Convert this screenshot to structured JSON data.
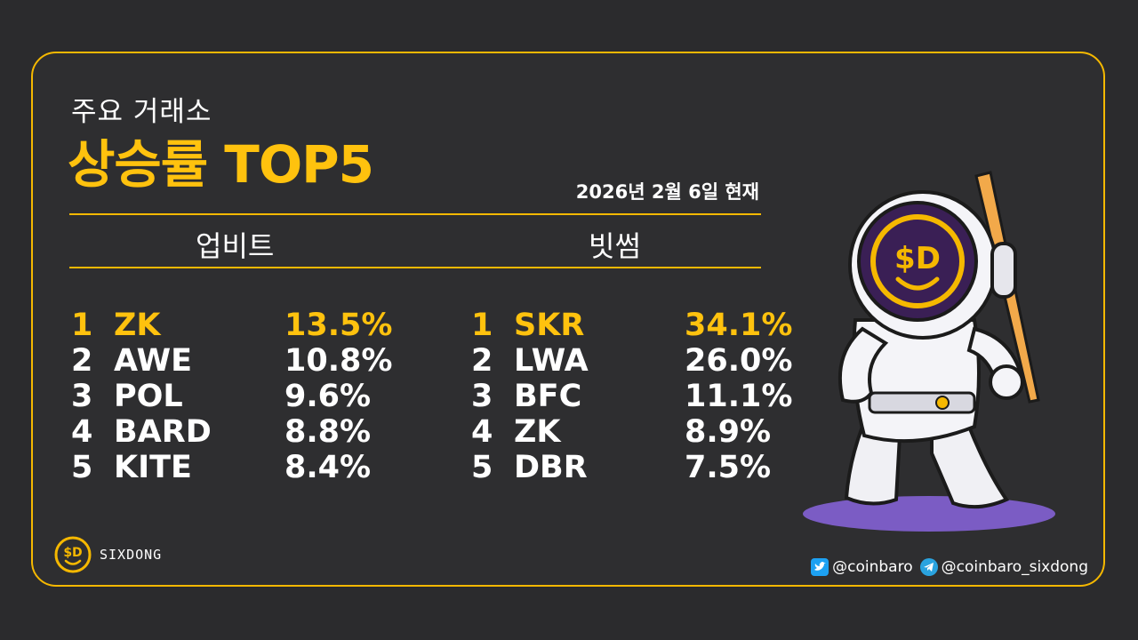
{
  "header": {
    "subtitle": "주요 거래소",
    "title": "상승률 TOP5",
    "date": "2026년 2월 6일 현재"
  },
  "exchanges": [
    {
      "name": "업비트",
      "rows": [
        {
          "rank": "1",
          "symbol": "ZK",
          "change": "13.5%"
        },
        {
          "rank": "2",
          "symbol": "AWE",
          "change": "10.8%"
        },
        {
          "rank": "3",
          "symbol": "POL",
          "change": "9.6%"
        },
        {
          "rank": "4",
          "symbol": "BARD",
          "change": "8.8%"
        },
        {
          "rank": "5",
          "symbol": "KITE",
          "change": "8.4%"
        }
      ]
    },
    {
      "name": "빗썸",
      "rows": [
        {
          "rank": "1",
          "symbol": "SKR",
          "change": "34.1%"
        },
        {
          "rank": "2",
          "symbol": "LWA",
          "change": "26.0%"
        },
        {
          "rank": "3",
          "symbol": "BFC",
          "change": "11.1%"
        },
        {
          "rank": "4",
          "symbol": "ZK",
          "change": "8.9%"
        },
        {
          "rank": "5",
          "symbol": "DBR",
          "change": "7.5%"
        }
      ]
    }
  ],
  "brand": {
    "logo_text": "$D",
    "name": "SIXDONG"
  },
  "social": {
    "twitter_icon": "twitter-icon",
    "twitter": "@coinbaro",
    "telegram_icon": "telegram-icon",
    "telegram": "@coinbaro_sixdong"
  },
  "colors": {
    "accent": "#ffc20e",
    "background": "#2b2b2d",
    "text": "#ffffff",
    "mascot_shadow": "#7b5cc4"
  }
}
